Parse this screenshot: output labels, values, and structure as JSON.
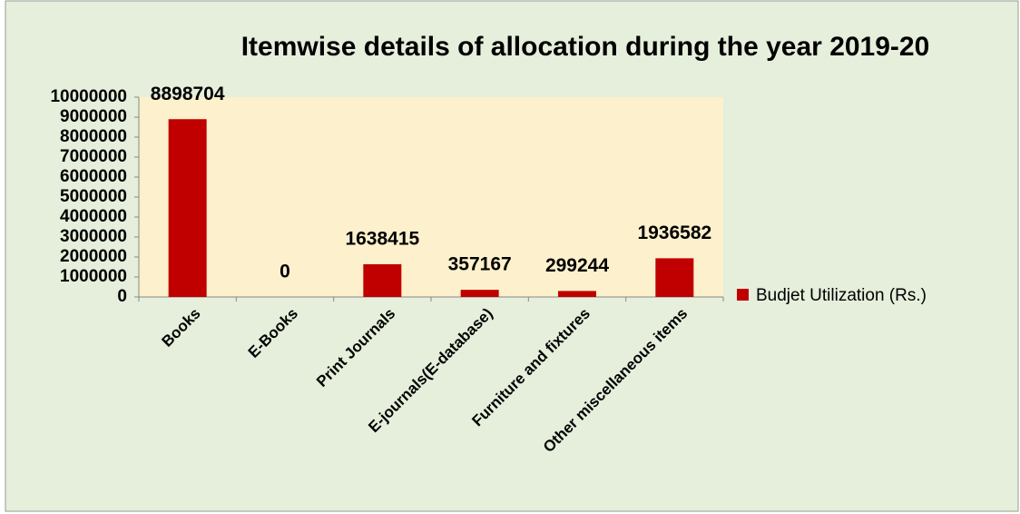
{
  "chart_data": {
    "type": "bar",
    "title": "Itemwise details of allocation during the year 2019-20",
    "categories": [
      "Books",
      "E-Books",
      "Print Journals",
      "E-journals(E-database)",
      "Furniture and fixtures",
      "Other miscellaneous items"
    ],
    "series": [
      {
        "name": "Budjet Utilization (Rs.)",
        "color": "#c00000",
        "values": [
          8898704,
          0,
          1638415,
          357167,
          299244,
          1936582
        ]
      }
    ],
    "ylim": [
      0,
      10000000
    ],
    "yticks": [
      0,
      1000000,
      2000000,
      3000000,
      4000000,
      5000000,
      6000000,
      7000000,
      8000000,
      9000000,
      10000000
    ],
    "grid": false,
    "legend": "right",
    "data_labels": true
  }
}
